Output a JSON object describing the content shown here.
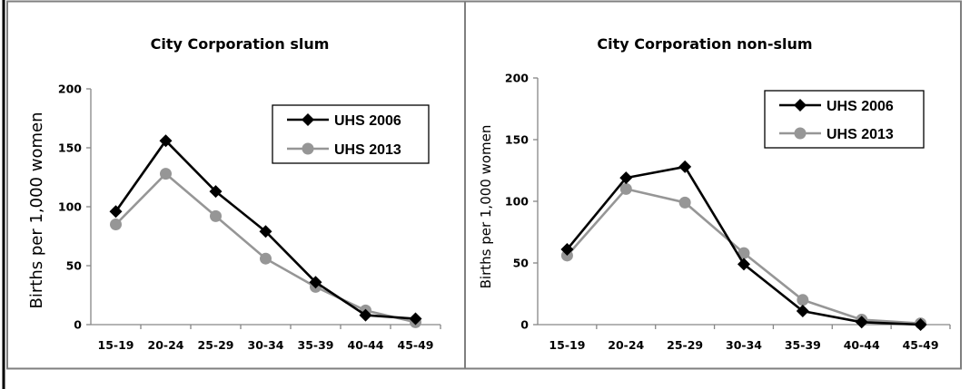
{
  "chart_data": [
    {
      "type": "line",
      "title": "City Corporation slum",
      "xlabel": "",
      "ylabel": "Births per  1,000 women",
      "categories": [
        "15-19",
        "20-24",
        "25-29",
        "30-34",
        "35-39",
        "40-44",
        "45-49"
      ],
      "ylim": [
        0,
        200
      ],
      "yticks": [
        0,
        50,
        100,
        150,
        200
      ],
      "grid": false,
      "legend": "top-right",
      "series": [
        {
          "name": "UHS 2006",
          "marker": "diamond",
          "color": "#000000",
          "values": [
            96,
            156,
            113,
            79,
            36,
            8,
            5
          ]
        },
        {
          "name": "UHS 2013",
          "marker": "circle",
          "color": "#969696",
          "values": [
            85,
            128,
            92,
            56,
            32,
            12,
            2
          ]
        }
      ]
    },
    {
      "type": "line",
      "title": "City Corporation non-slum",
      "xlabel": "",
      "ylabel": "Births per 1,000 women",
      "categories": [
        "15-19",
        "20-24",
        "25-29",
        "30-34",
        "35-39",
        "40-44",
        "45-49"
      ],
      "ylim": [
        0,
        200
      ],
      "yticks": [
        0,
        50,
        100,
        150,
        200
      ],
      "grid": false,
      "legend": "top-right",
      "series": [
        {
          "name": "UHS 2006",
          "marker": "diamond",
          "color": "#000000",
          "values": [
            61,
            119,
            128,
            49,
            11,
            2,
            0
          ]
        },
        {
          "name": "UHS 2013",
          "marker": "circle",
          "color": "#969696",
          "values": [
            56,
            110,
            99,
            58,
            20,
            4,
            1
          ]
        }
      ]
    }
  ]
}
